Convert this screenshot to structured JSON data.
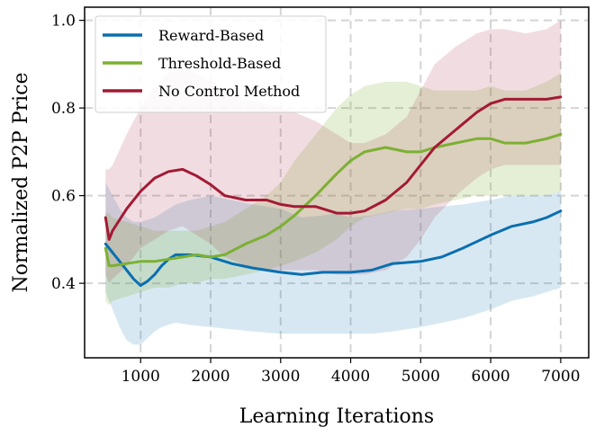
{
  "chart_data": {
    "type": "line",
    "xlabel": "Learning Iterations",
    "ylabel": "Normalized P2P Price",
    "xlim": [
      200,
      7400
    ],
    "ylim": [
      0.23,
      1.03
    ],
    "xticks": [
      1000,
      2000,
      3000,
      4000,
      5000,
      6000,
      7000
    ],
    "yticks": [
      0.4,
      0.6,
      0.8,
      1.0
    ],
    "xtick_labels": [
      "1000",
      "2000",
      "3000",
      "4000",
      "5000",
      "6000",
      "7000"
    ],
    "ytick_labels": [
      "0.4",
      "0.6",
      "0.8",
      "1.0"
    ],
    "grid": true,
    "legend_position": "top-left",
    "series": [
      {
        "name": "Reward-Based",
        "color": "#0a6fb0",
        "x": [
          500,
          600,
          700,
          800,
          900,
          1000,
          1100,
          1200,
          1300,
          1400,
          1500,
          1700,
          2000,
          2300,
          2600,
          3000,
          3300,
          3600,
          3800,
          4000,
          4300,
          4600,
          5000,
          5300,
          5600,
          5800,
          6000,
          6300,
          6600,
          6800,
          7000
        ],
        "values": [
          0.49,
          0.47,
          0.45,
          0.43,
          0.41,
          0.395,
          0.405,
          0.42,
          0.44,
          0.455,
          0.465,
          0.465,
          0.46,
          0.445,
          0.435,
          0.425,
          0.42,
          0.425,
          0.425,
          0.425,
          0.43,
          0.445,
          0.45,
          0.46,
          0.48,
          0.495,
          0.51,
          0.53,
          0.54,
          0.55,
          0.565
        ],
        "upper": [
          0.63,
          0.6,
          0.57,
          0.55,
          0.54,
          0.54,
          0.545,
          0.55,
          0.56,
          0.57,
          0.58,
          0.59,
          0.6,
          0.59,
          0.58,
          0.57,
          0.55,
          0.555,
          0.56,
          0.55,
          0.555,
          0.565,
          0.57,
          0.575,
          0.58,
          0.585,
          0.59,
          0.6,
          0.6,
          0.6,
          0.61
        ],
        "lower": [
          0.38,
          0.34,
          0.3,
          0.27,
          0.26,
          0.26,
          0.275,
          0.29,
          0.3,
          0.305,
          0.31,
          0.305,
          0.3,
          0.295,
          0.29,
          0.285,
          0.285,
          0.285,
          0.285,
          0.285,
          0.285,
          0.29,
          0.3,
          0.31,
          0.32,
          0.33,
          0.34,
          0.36,
          0.37,
          0.38,
          0.39
        ]
      },
      {
        "name": "Threshold-Based",
        "color": "#7cb032",
        "x": [
          500,
          550,
          600,
          800,
          1000,
          1200,
          1400,
          1600,
          1800,
          2000,
          2200,
          2500,
          2800,
          3000,
          3200,
          3500,
          3800,
          4000,
          4200,
          4500,
          4800,
          5000,
          5200,
          5500,
          5800,
          6000,
          6200,
          6500,
          6800,
          7000
        ],
        "values": [
          0.48,
          0.44,
          0.44,
          0.445,
          0.45,
          0.45,
          0.455,
          0.46,
          0.465,
          0.46,
          0.465,
          0.49,
          0.51,
          0.53,
          0.555,
          0.6,
          0.65,
          0.68,
          0.7,
          0.71,
          0.7,
          0.7,
          0.71,
          0.72,
          0.73,
          0.73,
          0.72,
          0.72,
          0.73,
          0.74
        ],
        "upper": [
          0.56,
          0.56,
          0.55,
          0.54,
          0.53,
          0.52,
          0.52,
          0.52,
          0.52,
          0.53,
          0.54,
          0.57,
          0.6,
          0.63,
          0.68,
          0.74,
          0.8,
          0.83,
          0.85,
          0.86,
          0.86,
          0.85,
          0.84,
          0.84,
          0.84,
          0.85,
          0.84,
          0.84,
          0.86,
          0.88
        ],
        "lower": [
          0.36,
          0.35,
          0.36,
          0.37,
          0.38,
          0.39,
          0.39,
          0.4,
          0.4,
          0.41,
          0.41,
          0.42,
          0.43,
          0.44,
          0.45,
          0.47,
          0.5,
          0.53,
          0.55,
          0.56,
          0.57,
          0.57,
          0.58,
          0.59,
          0.6,
          0.6,
          0.6,
          0.6,
          0.6,
          0.61
        ]
      },
      {
        "name": "No Control Method",
        "color": "#a31a35",
        "x": [
          500,
          550,
          600,
          800,
          1000,
          1200,
          1400,
          1600,
          1800,
          2000,
          2200,
          2500,
          2800,
          3000,
          3200,
          3500,
          3800,
          4000,
          4200,
          4500,
          4800,
          5000,
          5200,
          5500,
          5800,
          6000,
          6200,
          6500,
          6800,
          7000
        ],
        "values": [
          0.55,
          0.5,
          0.52,
          0.57,
          0.61,
          0.64,
          0.655,
          0.66,
          0.645,
          0.625,
          0.6,
          0.59,
          0.59,
          0.58,
          0.575,
          0.575,
          0.56,
          0.56,
          0.565,
          0.59,
          0.63,
          0.67,
          0.71,
          0.75,
          0.79,
          0.81,
          0.82,
          0.82,
          0.82,
          0.825
        ],
        "upper": [
          0.66,
          0.66,
          0.67,
          0.74,
          0.8,
          0.85,
          0.88,
          0.89,
          0.88,
          0.86,
          0.84,
          0.82,
          0.81,
          0.8,
          0.79,
          0.77,
          0.74,
          0.72,
          0.72,
          0.74,
          0.78,
          0.84,
          0.9,
          0.94,
          0.97,
          0.98,
          0.98,
          0.97,
          0.98,
          1.0
        ],
        "lower": [
          0.42,
          0.4,
          0.41,
          0.44,
          0.48,
          0.5,
          0.52,
          0.53,
          0.51,
          0.49,
          0.46,
          0.44,
          0.43,
          0.43,
          0.43,
          0.43,
          0.42,
          0.42,
          0.42,
          0.43,
          0.46,
          0.5,
          0.55,
          0.6,
          0.64,
          0.66,
          0.67,
          0.67,
          0.67,
          0.67
        ]
      }
    ]
  }
}
